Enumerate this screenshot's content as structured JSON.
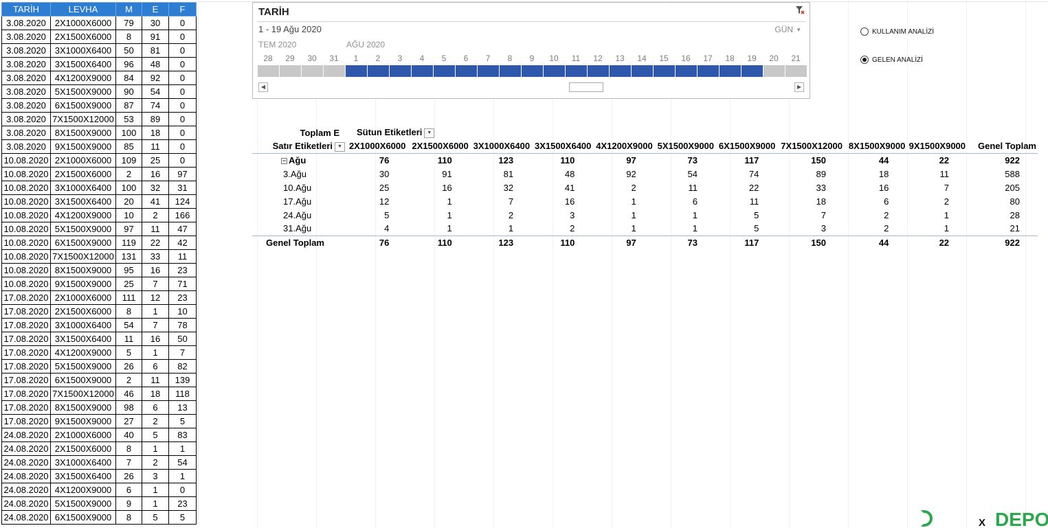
{
  "data_table": {
    "headers": [
      "TARİH",
      "LEVHA",
      "M",
      "E",
      "F"
    ],
    "rows": [
      [
        "3.08.2020",
        "2X1000X6000",
        "79",
        "30",
        "0"
      ],
      [
        "3.08.2020",
        "2X1500X6000",
        "8",
        "91",
        "0"
      ],
      [
        "3.08.2020",
        "3X1000X6400",
        "50",
        "81",
        "0"
      ],
      [
        "3.08.2020",
        "3X1500X6400",
        "96",
        "48",
        "0"
      ],
      [
        "3.08.2020",
        "4X1200X9000",
        "84",
        "92",
        "0"
      ],
      [
        "3.08.2020",
        "5X1500X9000",
        "90",
        "54",
        "0"
      ],
      [
        "3.08.2020",
        "6X1500X9000",
        "87",
        "74",
        "0"
      ],
      [
        "3.08.2020",
        "7X1500X12000",
        "53",
        "89",
        "0"
      ],
      [
        "3.08.2020",
        "8X1500X9000",
        "100",
        "18",
        "0"
      ],
      [
        "3.08.2020",
        "9X1500X9000",
        "85",
        "11",
        "0"
      ],
      [
        "10.08.2020",
        "2X1000X6000",
        "109",
        "25",
        "0"
      ],
      [
        "10.08.2020",
        "2X1500X6000",
        "2",
        "16",
        "97"
      ],
      [
        "10.08.2020",
        "3X1000X6400",
        "100",
        "32",
        "31"
      ],
      [
        "10.08.2020",
        "3X1500X6400",
        "20",
        "41",
        "124"
      ],
      [
        "10.08.2020",
        "4X1200X9000",
        "10",
        "2",
        "166"
      ],
      [
        "10.08.2020",
        "5X1500X9000",
        "97",
        "11",
        "47"
      ],
      [
        "10.08.2020",
        "6X1500X9000",
        "119",
        "22",
        "42"
      ],
      [
        "10.08.2020",
        "7X1500X12000",
        "131",
        "33",
        "11"
      ],
      [
        "10.08.2020",
        "8X1500X9000",
        "95",
        "16",
        "23"
      ],
      [
        "10.08.2020",
        "9X1500X9000",
        "25",
        "7",
        "71"
      ],
      [
        "17.08.2020",
        "2X1000X6000",
        "111",
        "12",
        "23"
      ],
      [
        "17.08.2020",
        "2X1500X6000",
        "8",
        "1",
        "10"
      ],
      [
        "17.08.2020",
        "3X1000X6400",
        "54",
        "7",
        "78"
      ],
      [
        "17.08.2020",
        "3X1500X6400",
        "11",
        "16",
        "50"
      ],
      [
        "17.08.2020",
        "4X1200X9000",
        "5",
        "1",
        "7"
      ],
      [
        "17.08.2020",
        "5X1500X9000",
        "26",
        "6",
        "82"
      ],
      [
        "17.08.2020",
        "6X1500X9000",
        "2",
        "11",
        "139"
      ],
      [
        "17.08.2020",
        "7X1500X12000",
        "46",
        "18",
        "118"
      ],
      [
        "17.08.2020",
        "8X1500X9000",
        "98",
        "6",
        "13"
      ],
      [
        "17.08.2020",
        "9X1500X9000",
        "27",
        "2",
        "5"
      ],
      [
        "24.08.2020",
        "2X1000X6000",
        "40",
        "5",
        "83"
      ],
      [
        "24.08.2020",
        "2X1500X6000",
        "8",
        "1",
        "1"
      ],
      [
        "24.08.2020",
        "3X1000X6400",
        "7",
        "2",
        "54"
      ],
      [
        "24.08.2020",
        "3X1500X6400",
        "26",
        "3",
        "1"
      ],
      [
        "24.08.2020",
        "4X1200X9000",
        "6",
        "1",
        "0"
      ],
      [
        "24.08.2020",
        "5X1500X9000",
        "9",
        "1",
        "23"
      ],
      [
        "24.08.2020",
        "6X1500X9000",
        "8",
        "5",
        "5"
      ]
    ]
  },
  "timeline": {
    "title": "TARİH",
    "range_text": "1 - 19 Ağu 2020",
    "level": "GÜN",
    "months": [
      "TEM 2020",
      "AĞU 2020"
    ],
    "days": [
      "28",
      "29",
      "30",
      "31",
      "1",
      "2",
      "3",
      "4",
      "5",
      "6",
      "7",
      "8",
      "9",
      "10",
      "11",
      "12",
      "13",
      "14",
      "15",
      "16",
      "17",
      "18",
      "19",
      "20",
      "21"
    ],
    "selected_start_day_index": 4,
    "selected_end_day_index": 22,
    "selected_color": "#2f57ac",
    "unselected_color": "#c8c8c8",
    "icons": {
      "clear_filter": "clear-filter-icon",
      "scroll_left": "scroll-left-icon",
      "scroll_right": "scroll-right-icon"
    }
  },
  "options": [
    {
      "label": "KULLANIM ANALİZİ",
      "selected": false
    },
    {
      "label": "GELEN ANALİZİ",
      "selected": true
    }
  ],
  "pivot": {
    "value_field": "Toplam E",
    "column_labels_caption": "Sütun Etiketleri",
    "row_labels_caption": "Satır Etiketleri",
    "columns": [
      "2X1000X6000",
      "2X1500X6000",
      "3X1000X6400",
      "3X1500X6400",
      "4X1200X9000",
      "5X1500X9000",
      "6X1500X9000",
      "7X1500X12000",
      "8X1500X9000",
      "9X1500X9000",
      "Genel Toplam"
    ],
    "group_row": {
      "label": "Ağu",
      "values": [
        "76",
        "110",
        "123",
        "110",
        "97",
        "73",
        "117",
        "150",
        "44",
        "22",
        "922"
      ]
    },
    "rows": [
      {
        "label": "3.Ağu",
        "values": [
          "30",
          "91",
          "81",
          "48",
          "92",
          "54",
          "74",
          "89",
          "18",
          "11",
          "588"
        ]
      },
      {
        "label": "10.Ağu",
        "values": [
          "25",
          "16",
          "32",
          "41",
          "2",
          "11",
          "22",
          "33",
          "16",
          "7",
          "205"
        ]
      },
      {
        "label": "17.Ağu",
        "values": [
          "12",
          "1",
          "7",
          "16",
          "1",
          "6",
          "11",
          "18",
          "6",
          "2",
          "80"
        ]
      },
      {
        "label": "24.Ağu",
        "values": [
          "5",
          "1",
          "2",
          "3",
          "1",
          "1",
          "5",
          "7",
          "2",
          "1",
          "28"
        ]
      },
      {
        "label": "31.Ağu",
        "values": [
          "4",
          "1",
          "1",
          "2",
          "1",
          "1",
          "5",
          "3",
          "2",
          "1",
          "21"
        ]
      }
    ],
    "grand_row": {
      "label": "Genel Toplam",
      "values": [
        "76",
        "110",
        "123",
        "110",
        "97",
        "73",
        "117",
        "150",
        "44",
        "22",
        "922"
      ]
    }
  },
  "logo": {
    "prefix": "X",
    "word": "DEPO",
    "color": "#2aa84a"
  }
}
